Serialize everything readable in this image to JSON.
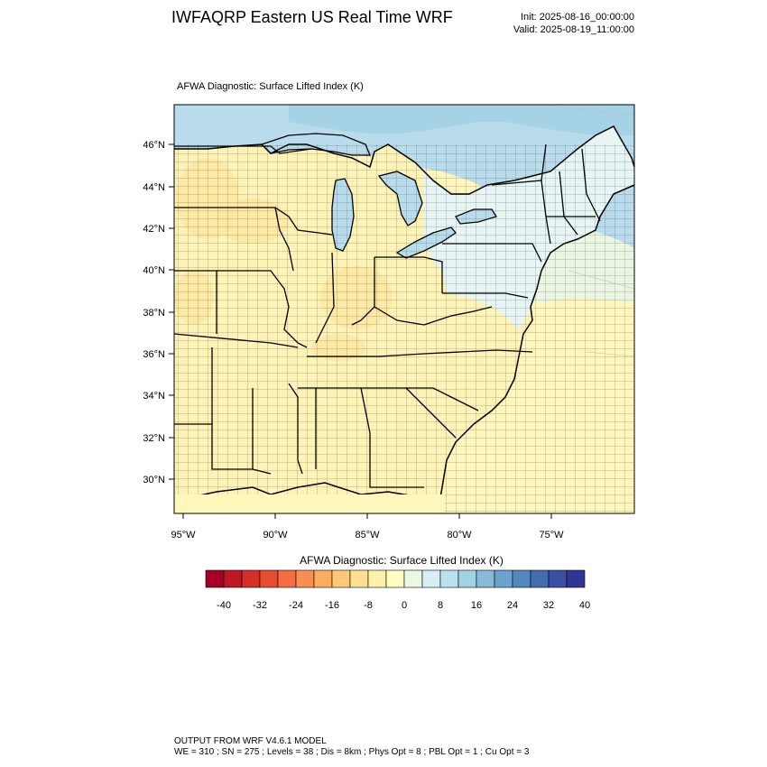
{
  "header": {
    "title": "IWFAQRP Eastern US Real Time WRF",
    "init": "Init: 2025-08-16_00:00:00",
    "valid": "Valid: 2025-08-19_11:00:00"
  },
  "plot": {
    "label": "AFWA Diagnostic: Surface Lifted Index   (K)",
    "lat_labels": [
      "46°N",
      "44°N",
      "42°N",
      "40°N",
      "38°N",
      "36°N",
      "34°N",
      "32°N",
      "30°N"
    ],
    "lon_labels": [
      "95°W",
      "90°W",
      "85°W",
      "80°W",
      "75°W"
    ],
    "colors": {
      "land_warm": "#fdf3b6",
      "land_warmer": "#fde6a0",
      "land_cool": "#e7f5f5",
      "water_cold": "#b9dcec",
      "water_colder": "#a6d2e6",
      "ocean_south": "#fff6bb",
      "ocean_mid": "#eaf6e2",
      "boundary": "#000000"
    }
  },
  "colorbar": {
    "title": "AFWA Diagnostic: Surface Lifted Index  (K)",
    "colors": [
      "#a50026",
      "#be1826",
      "#d62f27",
      "#e64c2f",
      "#f46d43",
      "#f88e52",
      "#fcad60",
      "#fdc978",
      "#fee090",
      "#fff0a8",
      "#ffffbf",
      "#ecf7e4",
      "#d6eef4",
      "#bbe1ed",
      "#a1d3e6",
      "#85bad9",
      "#6aa3cc",
      "#5288be",
      "#446db0",
      "#3b50a2",
      "#313695"
    ],
    "labels": [
      "-40",
      "-32",
      "-24",
      "-16",
      "-8",
      "0",
      "8",
      "16",
      "24",
      "32",
      "40"
    ]
  },
  "footer": {
    "line1": "OUTPUT FROM WRF V4.6.1 MODEL",
    "line2": "WE = 310 ; SN = 275 ; Levels = 38 ; Dis = 8km ; Phys Opt = 8 ; PBL Opt = 1 ; Cu Opt = 3"
  }
}
